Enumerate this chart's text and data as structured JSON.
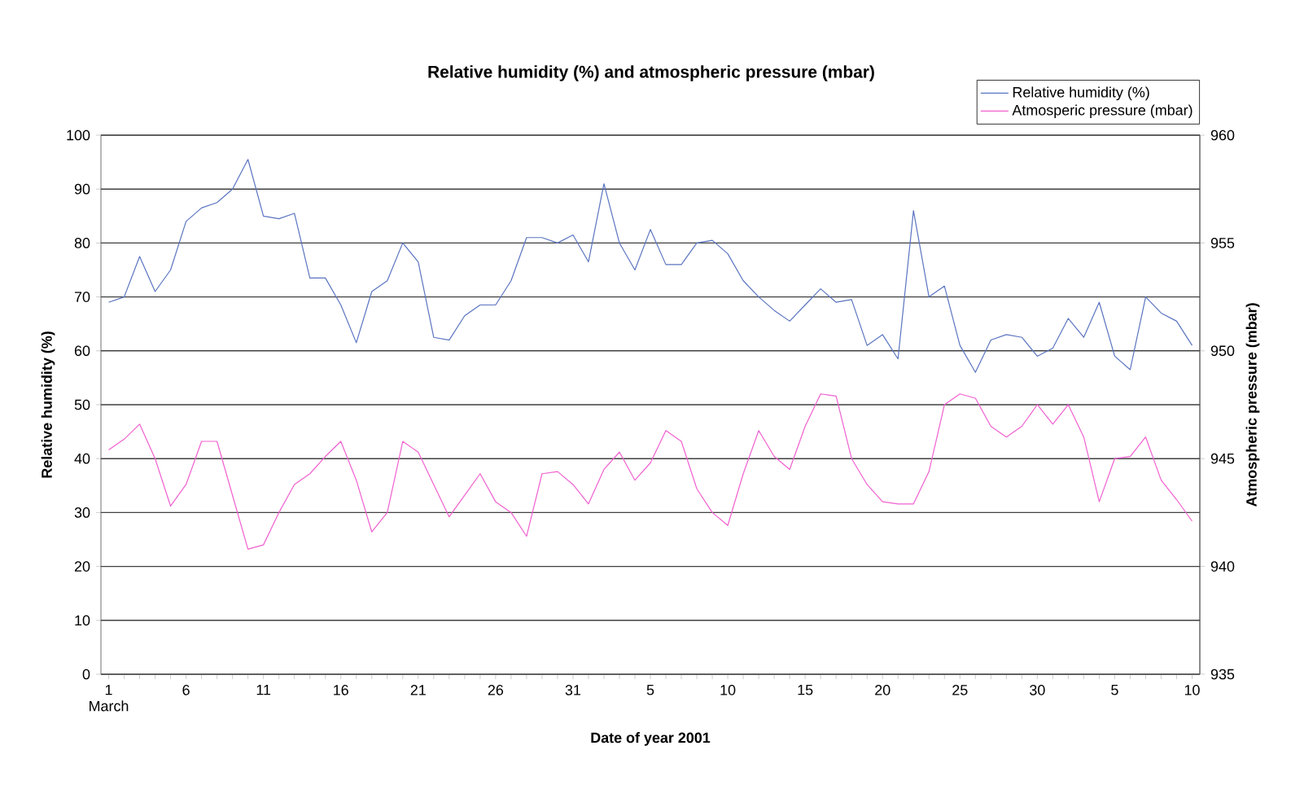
{
  "chart_data": {
    "type": "line",
    "title": "Relative humidity (%) and atmospheric pressure (mbar)",
    "xlabel": "Date of year 2001",
    "ylabel": "Relative humidity (%)",
    "y2label": "Atmospheric pressure (mbar)",
    "categories": [
      "1 March",
      null,
      null,
      null,
      null,
      "6",
      null,
      null,
      null,
      null,
      "11",
      null,
      null,
      null,
      null,
      "16",
      null,
      null,
      null,
      null,
      "21",
      null,
      null,
      null,
      null,
      "26",
      null,
      null,
      null,
      null,
      "31",
      null,
      null,
      null,
      null,
      "5",
      null,
      null,
      null,
      null,
      "10",
      null,
      null,
      null,
      null,
      "15",
      null,
      null,
      null,
      null,
      "20",
      null,
      null,
      null,
      null,
      "25",
      null,
      null,
      null,
      null,
      "30",
      null,
      null,
      null,
      null,
      "5",
      null,
      null,
      null,
      null,
      "10"
    ],
    "series": [
      {
        "name": "Relative humidity (%)",
        "color": "#5a74c0",
        "values": [
          69,
          70,
          77.5,
          71,
          75,
          84,
          86.5,
          87.5,
          90,
          95.5,
          85,
          84.5,
          85.5,
          73.5,
          73.5,
          68.5,
          61.5,
          71,
          73,
          80,
          76.5,
          62.5,
          62,
          66.5,
          68.5,
          68.5,
          73,
          81,
          81,
          80,
          81.5,
          76.5,
          91,
          80,
          75,
          82.5,
          76,
          76,
          80,
          80.5,
          78,
          73,
          70,
          67.5,
          65.5,
          68.5,
          71.5,
          69,
          69.5,
          61,
          63,
          58.5,
          86,
          70,
          72,
          61,
          56,
          62,
          63,
          62.5,
          59,
          60.5,
          66,
          62.5,
          69,
          59,
          56.5,
          70,
          67,
          65.5,
          61
        ]
      },
      {
        "name": "Atmosperic pressure (mbar)",
        "color": "#f060d0",
        "axis": "y2",
        "values": [
          945.4,
          945.9,
          946.6,
          945,
          942.8,
          943.8,
          945.8,
          945.8,
          943.3,
          940.8,
          941,
          942.5,
          943.8,
          944.3,
          945.1,
          945.8,
          944,
          941.6,
          942.5,
          945.8,
          945.3,
          943.8,
          942.3,
          943.3,
          944.3,
          943,
          942.5,
          941.4,
          944.3,
          944.4,
          943.8,
          942.9,
          944.5,
          945.3,
          944,
          944.8,
          946.3,
          945.8,
          943.6,
          942.5,
          941.9,
          944.3,
          946.3,
          945.1,
          944.5,
          946.5,
          948,
          947.9,
          945,
          943.8,
          943,
          942.9,
          942.9,
          944.4,
          947.5,
          948,
          947.8,
          946.5,
          946,
          946.5,
          947.5,
          946.6,
          947.5,
          946,
          943,
          945,
          945.1,
          946,
          944,
          943.1,
          942.1
        ]
      }
    ],
    "ylim": [
      0,
      100
    ],
    "yticks": [
      0,
      10,
      20,
      30,
      40,
      50,
      60,
      70,
      80,
      90,
      100
    ],
    "y2lim": [
      935,
      960
    ],
    "y2ticks": [
      935,
      940,
      945,
      950,
      955,
      960
    ],
    "grid": "y",
    "legend": "top right"
  }
}
